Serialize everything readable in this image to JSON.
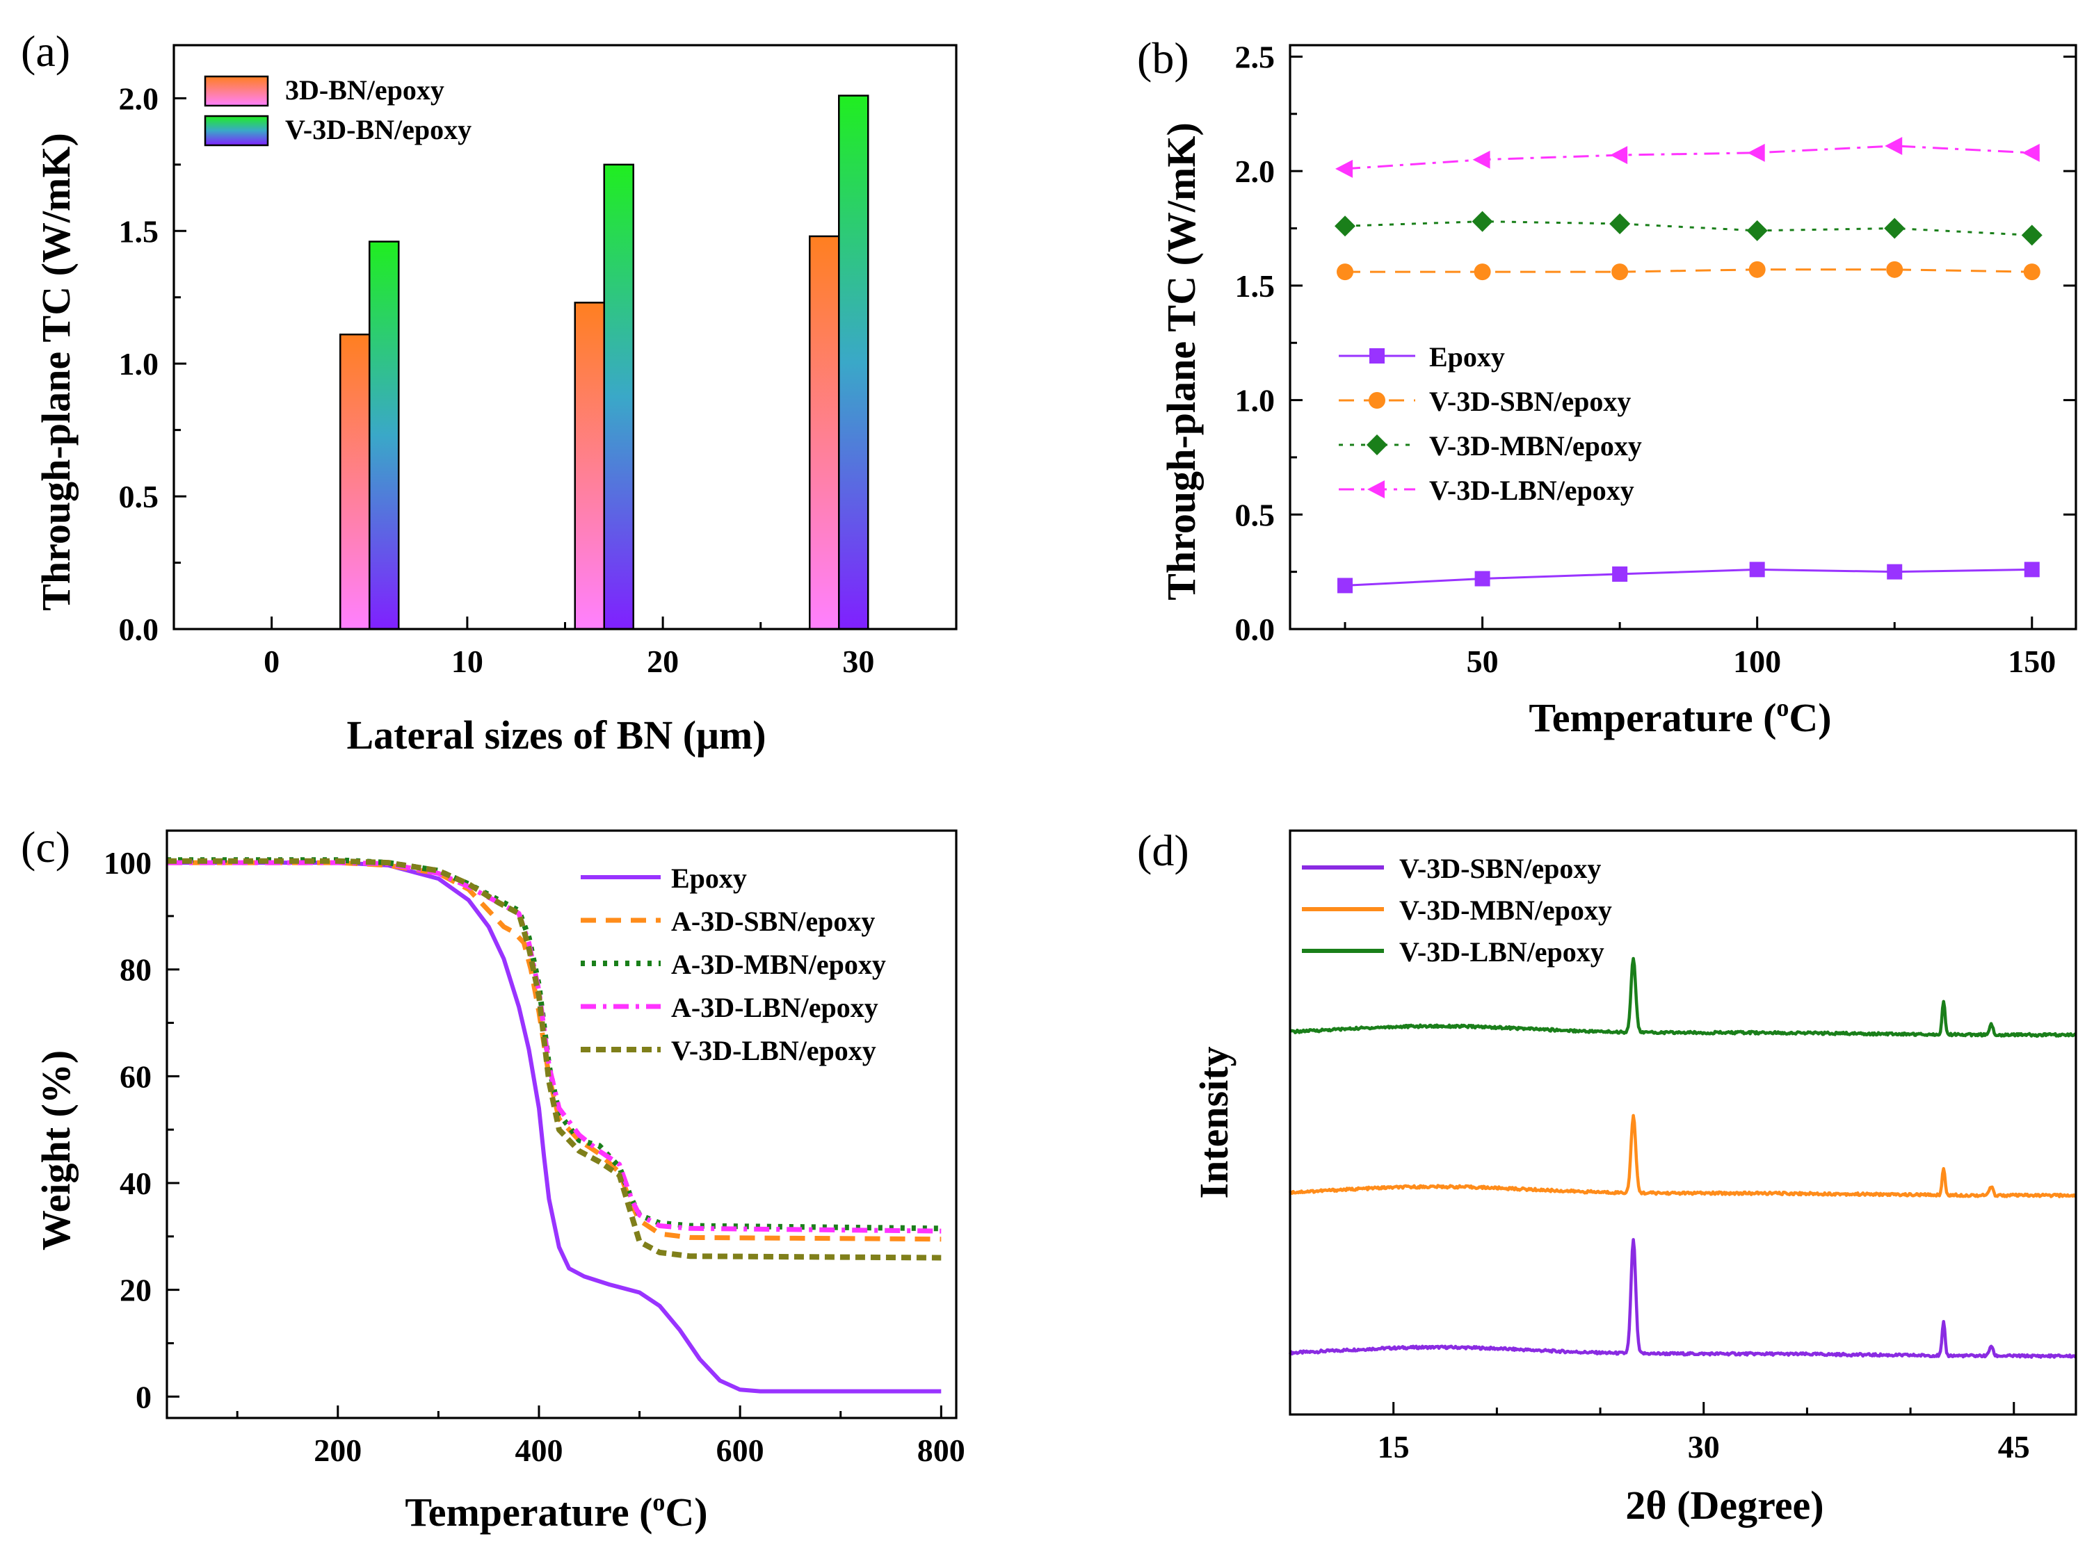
{
  "chart_data": [
    {
      "panel": "(a)",
      "type": "bar",
      "xlabel": "Lateral sizes of BN (μm)",
      "ylabel": "Through-plane TC (W/mK)",
      "xlim": [
        -5,
        35
      ],
      "ylim": [
        0,
        2.2
      ],
      "xticks": [
        "0",
        "10",
        "20",
        "30"
      ],
      "yticks": [
        "0.0",
        "0.5",
        "1.0",
        "1.5",
        "2.0"
      ],
      "categories": [
        5,
        17,
        29
      ],
      "series": [
        {
          "name": "3D-BN/epoxy",
          "values": [
            1.11,
            1.23,
            1.48
          ],
          "colors": [
            "#ff7f20",
            "#ff80ff"
          ]
        },
        {
          "name": "V-3D-BN/epoxy",
          "values": [
            1.46,
            1.75,
            2.01
          ],
          "colors": [
            "#20ee20",
            "#8020ff"
          ]
        }
      ],
      "legend": "top-left"
    },
    {
      "panel": "(b)",
      "type": "line",
      "xlabel": "Temperature (",
      "xlabel_sup": "o",
      "xlabel_end": "C)",
      "ylabel": "Through-plane TC (W/mK)",
      "xlim": [
        15,
        158
      ],
      "ylim": [
        0,
        2.55
      ],
      "xticks": [
        "50",
        "100",
        "150"
      ],
      "yticks": [
        "0.0",
        "0.5",
        "1.0",
        "1.5",
        "2.0",
        "2.5"
      ],
      "x": [
        25,
        50,
        75,
        100,
        125,
        150
      ],
      "series": [
        {
          "name": "Epoxy",
          "values": [
            0.19,
            0.22,
            0.24,
            0.26,
            0.25,
            0.26
          ],
          "color": "#9933ff",
          "marker": "square",
          "dash": "solid"
        },
        {
          "name": "V-3D-SBN/epoxy",
          "values": [
            1.56,
            1.56,
            1.56,
            1.57,
            1.57,
            1.56
          ],
          "color": "#ff8c1a",
          "marker": "circle",
          "dash": "dashed"
        },
        {
          "name": "V-3D-MBN/epoxy",
          "values": [
            1.76,
            1.78,
            1.77,
            1.74,
            1.75,
            1.72
          ],
          "color": "#1a7f1a",
          "marker": "diamond",
          "dash": "dotted"
        },
        {
          "name": "V-3D-LBN/epoxy",
          "values": [
            2.01,
            2.05,
            2.07,
            2.08,
            2.11,
            2.08
          ],
          "color": "#ff33ff",
          "marker": "triangle-left",
          "dash": "dashdot"
        }
      ],
      "legend": "middle-left"
    },
    {
      "panel": "(c)",
      "type": "line",
      "xlabel": "Temperature (",
      "xlabel_sup": "o",
      "xlabel_end": "C)",
      "ylabel": "Weight (%)",
      "xlim": [
        30,
        815
      ],
      "ylim": [
        -4,
        106
      ],
      "xticks": [
        "200",
        "400",
        "600",
        "800"
      ],
      "yticks": [
        "0",
        "20",
        "40",
        "60",
        "80",
        "100"
      ],
      "series": [
        {
          "name": "Epoxy",
          "color": "#9933ff",
          "dash": "solid",
          "x": [
            30,
            200,
            250,
            300,
            330,
            350,
            365,
            380,
            390,
            400,
            405,
            410,
            420,
            430,
            445,
            470,
            500,
            520,
            540,
            560,
            580,
            600,
            620,
            700,
            800
          ],
          "y": [
            100,
            100,
            99.5,
            97,
            93,
            88,
            82,
            73,
            65,
            54,
            45,
            37,
            28,
            24,
            22.5,
            21,
            19.5,
            17,
            12.5,
            7,
            3,
            1.3,
            1,
            1,
            1
          ]
        },
        {
          "name": "A-3D-SBN/epoxy",
          "color": "#ff8c1a",
          "dash": "dashed",
          "x": [
            30,
            200,
            250,
            300,
            330,
            350,
            365,
            375,
            385,
            392,
            400,
            410,
            420,
            440,
            460,
            480,
            492,
            500,
            520,
            550,
            800
          ],
          "y": [
            100,
            100,
            99.5,
            98,
            95,
            91,
            88,
            87,
            85,
            80,
            72,
            60,
            52,
            48,
            45.5,
            42,
            36,
            33,
            30.5,
            29.8,
            29.5
          ]
        },
        {
          "name": "A-3D-MBN/epoxy",
          "color": "#1a7f1a",
          "dash": "dotted",
          "x": [
            30,
            200,
            250,
            300,
            330,
            360,
            380,
            390,
            400,
            410,
            420,
            440,
            460,
            480,
            492,
            500,
            520,
            550,
            800
          ],
          "y": [
            100.5,
            100.5,
            100,
            98.5,
            96,
            93,
            91,
            86,
            77,
            62,
            53,
            48,
            47,
            43,
            37,
            34,
            32.5,
            32,
            31.5
          ]
        },
        {
          "name": "A-3D-LBN/epoxy",
          "color": "#ff33ff",
          "dash": "dashdot",
          "x": [
            30,
            200,
            250,
            300,
            330,
            360,
            380,
            390,
            400,
            410,
            420,
            440,
            460,
            480,
            492,
            500,
            520,
            550,
            800
          ],
          "y": [
            100,
            100,
            99.8,
            98,
            95.5,
            92.5,
            90.5,
            85,
            76,
            62,
            54,
            49,
            46,
            43.5,
            37,
            34,
            32,
            31.5,
            31
          ]
        },
        {
          "name": "V-3D-LBN/epoxy",
          "color": "#7f7f1a",
          "dash": "shortdash",
          "x": [
            30,
            200,
            250,
            300,
            330,
            360,
            380,
            390,
            400,
            410,
            420,
            440,
            460,
            480,
            492,
            500,
            520,
            550,
            800
          ],
          "y": [
            100.3,
            100.3,
            100,
            98.5,
            96,
            92.5,
            90.5,
            84,
            75,
            59,
            50,
            46,
            44,
            41.5,
            34,
            29,
            27,
            26.3,
            26
          ]
        }
      ],
      "legend": "top-right"
    },
    {
      "panel": "(d)",
      "type": "line",
      "xlabel": "2θ (Degree)",
      "ylabel": "Intensity",
      "xlim": [
        10,
        48
      ],
      "xticks": [
        "15",
        "30",
        "45"
      ],
      "series": [
        {
          "name": "V-3D-SBN/epoxy",
          "color": "#8a2be2",
          "offset": 0,
          "peaks": [
            [
              26.6,
              1.55,
              0.16
            ],
            [
              41.6,
              0.45,
              0.1
            ],
            [
              43.9,
              0.14,
              0.12
            ]
          ]
        },
        {
          "name": "V-3D-MBN/epoxy",
          "color": "#ff8c1a",
          "offset": 2.2,
          "peaks": [
            [
              26.6,
              1.05,
              0.16
            ],
            [
              41.6,
              0.36,
              0.1
            ],
            [
              43.9,
              0.12,
              0.12
            ]
          ]
        },
        {
          "name": "V-3D-LBN/epoxy",
          "color": "#1a7f1a",
          "offset": 4.4,
          "peaks": [
            [
              26.6,
              1.0,
              0.16
            ],
            [
              41.6,
              0.45,
              0.1
            ],
            [
              43.9,
              0.15,
              0.12
            ]
          ]
        }
      ],
      "legend": "top-left"
    }
  ]
}
